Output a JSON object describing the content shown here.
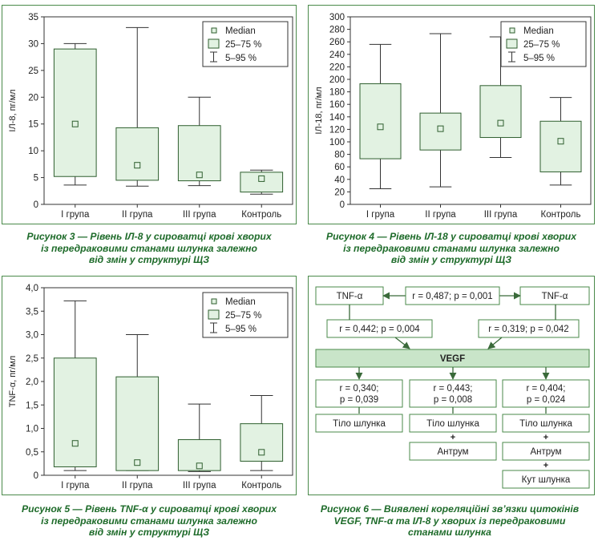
{
  "colors": {
    "frame": "#4a8a4a",
    "box_fill": "#e2f2e2",
    "box_stroke": "#2e5e2e",
    "caption": "#1e6b2a",
    "node_border": "#4a8a4a",
    "vegf_fill": "#c9e5c9"
  },
  "legend": {
    "median": "Median",
    "iqr": "25–75 %",
    "range": "5–95 %"
  },
  "chart_data": [
    {
      "type": "box",
      "ylabel": "ІЛ-8, пг/мл",
      "ylim": [
        0,
        35
      ],
      "yticks": [
        "0",
        "5",
        "10",
        "15",
        "20",
        "25",
        "30",
        "35"
      ],
      "categories": [
        "I група",
        "II група",
        "III група",
        "Контроль"
      ],
      "series": [
        {
          "p5": 3.6,
          "q1": 5.2,
          "median": 15.0,
          "q3": 29.0,
          "p95": 30.0
        },
        {
          "p5": 3.4,
          "q1": 4.5,
          "median": 7.3,
          "q3": 14.3,
          "p95": 33.0
        },
        {
          "p5": 3.5,
          "q1": 4.4,
          "median": 5.5,
          "q3": 14.7,
          "p95": 20.0
        },
        {
          "p5": 1.9,
          "q1": 2.3,
          "median": 4.8,
          "q3": 6.0,
          "p95": 6.4
        }
      ],
      "caption": [
        "Рисунок 3 — Рівень ІЛ-8 у сироватці крові хворих",
        "із передраковими станами шлунка залежно",
        "від змін у структурі ЩЗ"
      ]
    },
    {
      "type": "box",
      "ylabel": "ІЛ-18, пг/мл",
      "ylim": [
        0,
        300
      ],
      "yticks": [
        "0",
        "20",
        "40",
        "60",
        "80",
        "100",
        "120",
        "140",
        "160",
        "180",
        "200",
        "220",
        "240",
        "260",
        "280",
        "300"
      ],
      "categories": [
        "I група",
        "II група",
        "III група",
        "Контроль"
      ],
      "series": [
        {
          "p5": 25,
          "q1": 73,
          "median": 124,
          "q3": 193,
          "p95": 256
        },
        {
          "p5": 28,
          "q1": 87,
          "median": 121,
          "q3": 146,
          "p95": 273
        },
        {
          "p5": 75,
          "q1": 107,
          "median": 130,
          "q3": 190,
          "p95": 268
        },
        {
          "p5": 31,
          "q1": 52,
          "median": 101,
          "q3": 133,
          "p95": 171
        }
      ],
      "caption": [
        "Рисунок 4 — Рівень ІЛ-18 у сироватці крові хворих",
        "із передраковими станами шлунка залежно",
        "від змін у структурі ЩЗ"
      ]
    },
    {
      "type": "box",
      "ylabel": "TNF-α, пг/мл",
      "ylim": [
        0,
        4.0
      ],
      "yticks": [
        "0",
        "0,5",
        "1,0",
        "1,5",
        "2,0",
        "2,5",
        "3,0",
        "3,5",
        "4,0"
      ],
      "categories": [
        "I група",
        "II група",
        "III група",
        "Контроль"
      ],
      "series": [
        {
          "p5": 0.1,
          "q1": 0.18,
          "median": 0.68,
          "q3": 2.5,
          "p95": 3.72
        },
        {
          "p5": 0.1,
          "q1": 0.1,
          "median": 0.27,
          "q3": 2.1,
          "p95": 3.0
        },
        {
          "p5": 0.08,
          "q1": 0.1,
          "median": 0.2,
          "q3": 0.76,
          "p95": 1.52
        },
        {
          "p5": 0.1,
          "q1": 0.3,
          "median": 0.49,
          "q3": 1.1,
          "p95": 1.7
        }
      ],
      "caption": [
        "Рисунок 5 — Рівень TNF-α у сироватці крові хворих",
        "із передраковими станами шлунка залежно",
        "від змін у структурі ЩЗ"
      ]
    }
  ],
  "diagram": {
    "tnf_left": "TNF-α",
    "tnf_right": "TNF-α",
    "corr_top": "r = 0,487; p = 0,001",
    "corr_left": "r = 0,442; p = 0,004",
    "corr_right": "r = 0,319; p = 0,042",
    "vegf": "VEGF",
    "cols": [
      {
        "r": "r = 0,340;",
        "p": "p = 0,039",
        "items": [
          "Тіло шлунка"
        ]
      },
      {
        "r": "r = 0,443;",
        "p": "p = 0,008",
        "items": [
          "Тіло шлунка",
          "Антрум"
        ]
      },
      {
        "r": "r = 0,404;",
        "p": "p = 0,024",
        "items": [
          "Тіло шлунка",
          "Антрум",
          "Кут шлунка"
        ]
      }
    ],
    "plus": "+",
    "caption": [
      "Рисунок 6 — Виявлені кореляційні зв’язки цитокінів",
      "VEGF, TNF-α та ІЛ-8 у хворих із передраковими",
      "станами шлунка"
    ]
  }
}
